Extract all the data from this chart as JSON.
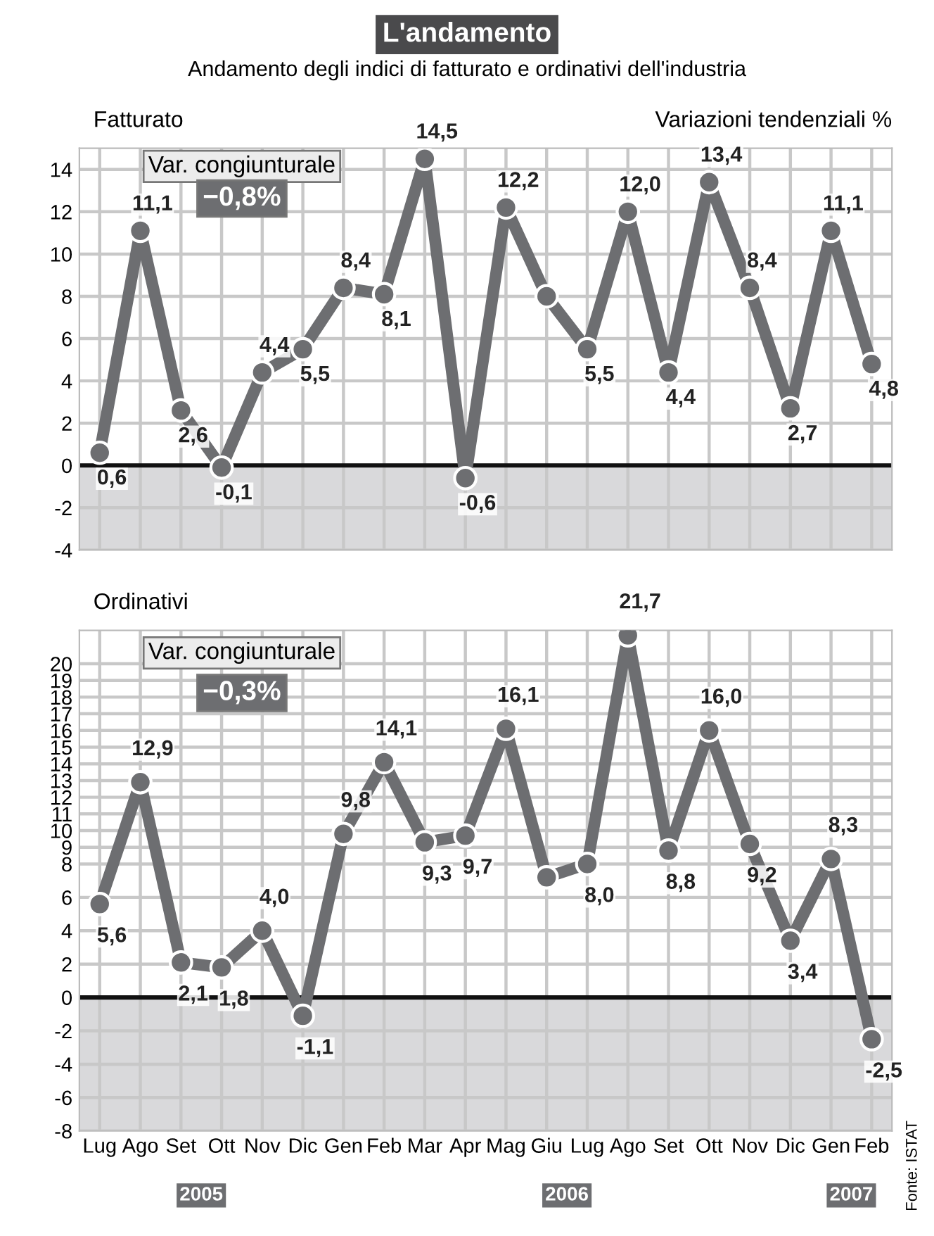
{
  "chart_data": [
    {
      "type": "line",
      "title": "L'andamento",
      "subtitle": "Andamento degli indici di fatturato e ordinativi dell'industria",
      "ylabel": "Variazioni tendenziali %",
      "annotations": [
        "Fatturato",
        "Var. congiunturale",
        "−0,8%"
      ],
      "categories": [
        null,
        null,
        null,
        null,
        null,
        null,
        null,
        null,
        null,
        null,
        null,
        null,
        null,
        null,
        null,
        null,
        null,
        null,
        null,
        null
      ],
      "series": [
        {
          "color": "#6d6e71",
          "values": [
            0.6,
            11.1,
            2.6,
            -0.1,
            4.4,
            5.5,
            8.4,
            8.1,
            14.5,
            -0.6,
            12.2,
            8.0,
            5.5,
            12.0,
            4.4,
            13.4,
            8.4,
            2.7,
            11.1,
            4.8
          ],
          "value_labels": [
            "0,6",
            "11,1",
            "2,6",
            "-0,1",
            "4,4",
            "5,5",
            "8,4",
            "8,1",
            "14,5",
            "-0,6",
            "12,2",
            null,
            "5,5",
            "12,0",
            "4,4",
            "13,4",
            "8,4",
            "2,7",
            "11,1",
            "4,8"
          ]
        }
      ],
      "ylim": [
        -4,
        15
      ],
      "yticks": [
        -4,
        -2,
        0,
        2,
        4,
        6,
        8,
        10,
        12,
        14
      ],
      "grid": true,
      "marker": "circle",
      "line_style": "solid",
      "bands": [
        {
          "axis": "y",
          "from": -4,
          "to": 0,
          "color": "#d9d9db"
        }
      ],
      "ref_lines": [
        {
          "axis": "y",
          "value": 0,
          "color": "#111111"
        }
      ]
    },
    {
      "type": "line",
      "title": "Ordinativi",
      "annotations": [
        "Var. congiunturale",
        "−0,3%",
        "2005",
        "2006",
        "2007",
        "Fonte: ISTAT"
      ],
      "categories": [
        "Lug",
        "Ago",
        "Set",
        "Ott",
        "Nov",
        "Dic",
        "Gen",
        "Feb",
        "Mar",
        "Apr",
        "Mag",
        "Giu",
        "Lug",
        "Ago",
        "Set",
        "Ott",
        "Nov",
        "Dic",
        "Gen",
        "Feb"
      ],
      "series": [
        {
          "color": "#6d6e71",
          "values": [
            5.6,
            12.9,
            2.1,
            1.8,
            4.0,
            -1.1,
            9.8,
            14.1,
            9.3,
            9.7,
            16.1,
            7.2,
            8.0,
            21.7,
            8.8,
            16.0,
            9.2,
            3.4,
            8.3,
            -2.5
          ],
          "value_labels": [
            "5,6",
            "12,9",
            "2,1",
            "1,8",
            "4,0",
            "-1,1",
            "9,8",
            "14,1",
            "9,3",
            "9,7",
            "16,1",
            null,
            "8,0",
            "21,7",
            "8,8",
            "16,0",
            "9,2",
            "3,4",
            "8,3",
            "-2,5"
          ]
        }
      ],
      "ylim": [
        -8,
        22
      ],
      "yticks": [
        -8,
        -6,
        -4,
        -2,
        0,
        2,
        4,
        6,
        8,
        9,
        10,
        11,
        12,
        13,
        14,
        15,
        16,
        17,
        18,
        19,
        20
      ],
      "grid": true,
      "marker": "circle",
      "line_style": "solid",
      "bands": [
        {
          "axis": "y",
          "from": -8,
          "to": 0,
          "color": "#d9d9db"
        }
      ],
      "ref_lines": [
        {
          "axis": "y",
          "value": 0,
          "color": "#111111"
        }
      ]
    }
  ]
}
